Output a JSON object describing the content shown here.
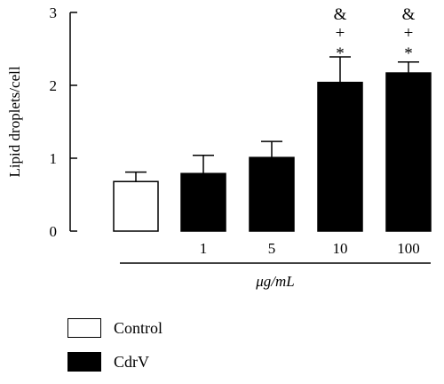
{
  "chart_data": {
    "type": "bar",
    "ylabel": "Lipid droplets/cell",
    "xlabel": "μg/mL",
    "ylim": [
      0,
      3
    ],
    "yticks": [
      "0",
      "1",
      "2",
      "3"
    ],
    "grid": false,
    "legend_position": "bottom-left",
    "series": [
      {
        "name": "Control",
        "color": "#ffffff",
        "categories": [
          ""
        ],
        "values": [
          0.68
        ],
        "errors": [
          0.13
        ]
      },
      {
        "name": "CdrV",
        "color": "#000000",
        "categories": [
          "1",
          "5",
          "10",
          "100"
        ],
        "values": [
          0.79,
          1.01,
          2.04,
          2.17
        ],
        "errors": [
          0.25,
          0.22,
          0.35,
          0.15
        ]
      }
    ],
    "annotations": [
      {
        "category": "10",
        "lines": [
          "&",
          "+",
          "*"
        ]
      },
      {
        "category": "100",
        "lines": [
          "&",
          "+",
          "*"
        ]
      }
    ]
  },
  "legend": {
    "items": [
      {
        "label": "Control",
        "color": "#ffffff"
      },
      {
        "label": "CdrV",
        "color": "#000000"
      }
    ]
  }
}
